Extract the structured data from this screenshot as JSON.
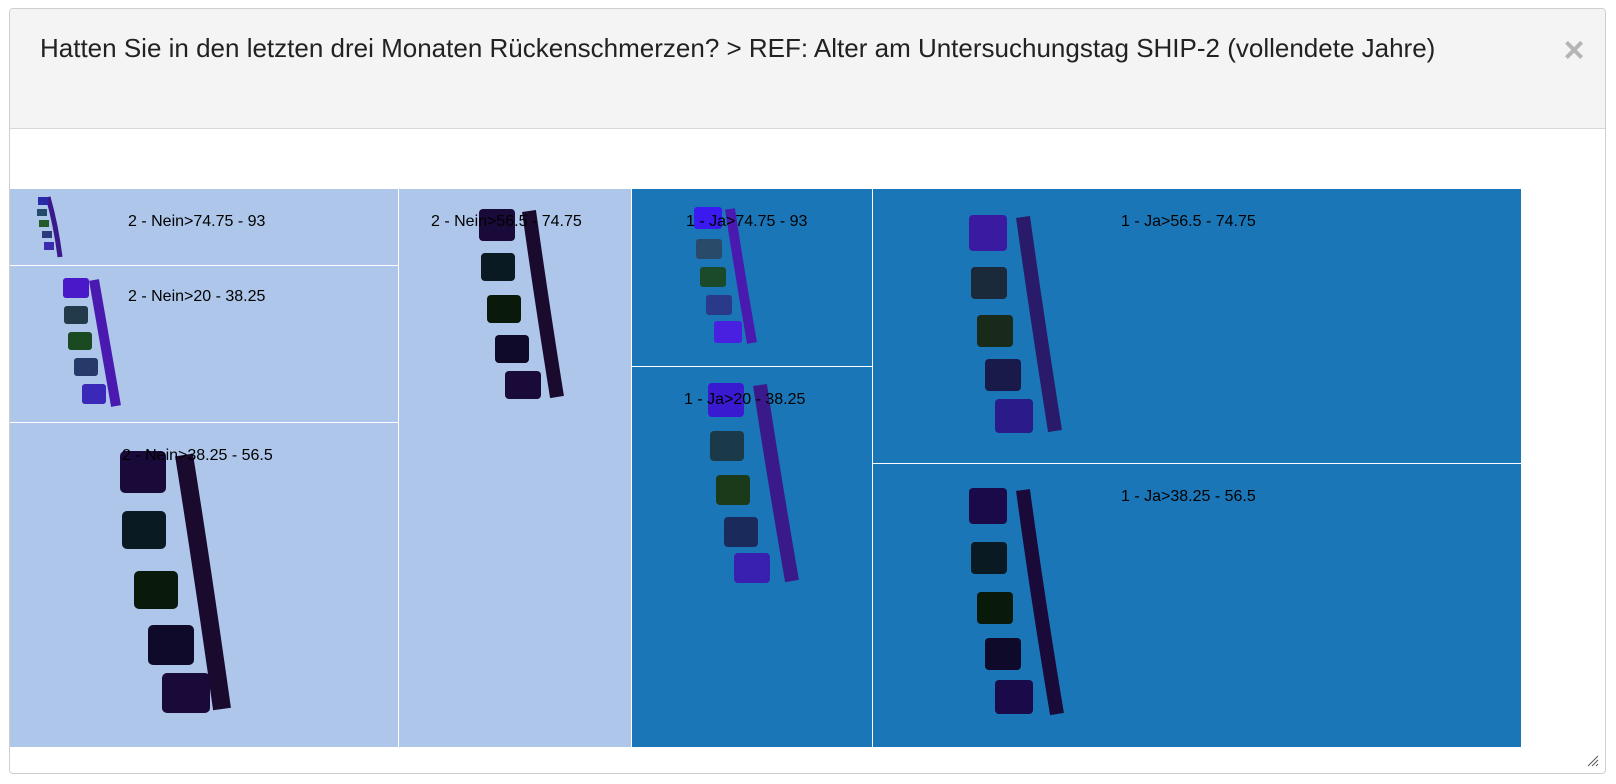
{
  "header": {
    "title": "Hatten Sie in den letzten drei Monaten Rückenschmerzen? > REF: Alter am Untersuchungstag SHIP-2 (vollendete Jahre)",
    "close_icon": "close-icon"
  },
  "treemap": {
    "colors": {
      "nein": "#adc6ea",
      "ja": "#1a76b6"
    },
    "cells": [
      {
        "label": "2 - Nein>74.75 - 93"
      },
      {
        "label": "2 - Nein>20 - 38.25"
      },
      {
        "label": "2 - Nein>38.25 - 56.5"
      },
      {
        "label": "2 - Nein>56.5 - 74.75"
      },
      {
        "label": "1 - Ja>74.75 - 93"
      },
      {
        "label": "1 - Ja>20 - 38.25"
      },
      {
        "label": "1 - Ja>56.5 - 74.75"
      },
      {
        "label": "1 - Ja>38.25 - 56.5"
      }
    ]
  },
  "resize_icon": "resize-grip-icon"
}
